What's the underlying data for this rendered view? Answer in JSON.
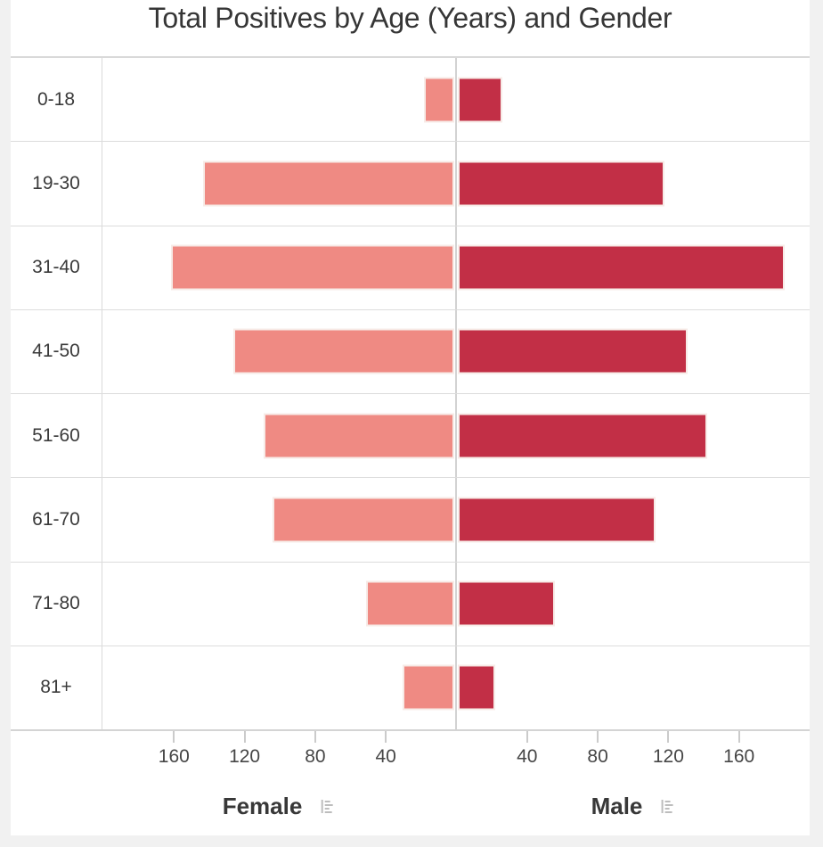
{
  "chart_data": {
    "type": "bar",
    "subtype": "population-pyramid",
    "orientation": "horizontal",
    "title": "Total Positives by Age (Years) and Gender",
    "categories": [
      "0-18",
      "19-30",
      "31-40",
      "41-50",
      "51-60",
      "61-70",
      "71-80",
      "81+"
    ],
    "series": [
      {
        "name": "Female",
        "color": "#ef8a83",
        "values": [
          17,
          142,
          160,
          125,
          108,
          103,
          50,
          29
        ]
      },
      {
        "name": "Male",
        "color": "#c22f46",
        "values": [
          25,
          117,
          185,
          130,
          141,
          112,
          55,
          21
        ]
      }
    ],
    "xlabel_left": "Female",
    "xlabel_right": "Male",
    "axis_ticks": [
      40,
      80,
      120,
      160
    ],
    "xlim_each_side": [
      0,
      200
    ],
    "grid": "row-separators-on",
    "legend_position": "bottom"
  },
  "icons": {
    "axis_label_icon": "mini-bar-chart-icon"
  },
  "colors": {
    "female_bar": "#ef8a83",
    "male_bar": "#c22f46",
    "bar_outline": "#f7ebe7",
    "grid_line": "#dcdcdc",
    "center_line": "#d2d2d2",
    "tick_mark": "#cbcbcb",
    "text": "#363636",
    "page_background": "#f1f1f1",
    "card_background": "#ffffff"
  }
}
